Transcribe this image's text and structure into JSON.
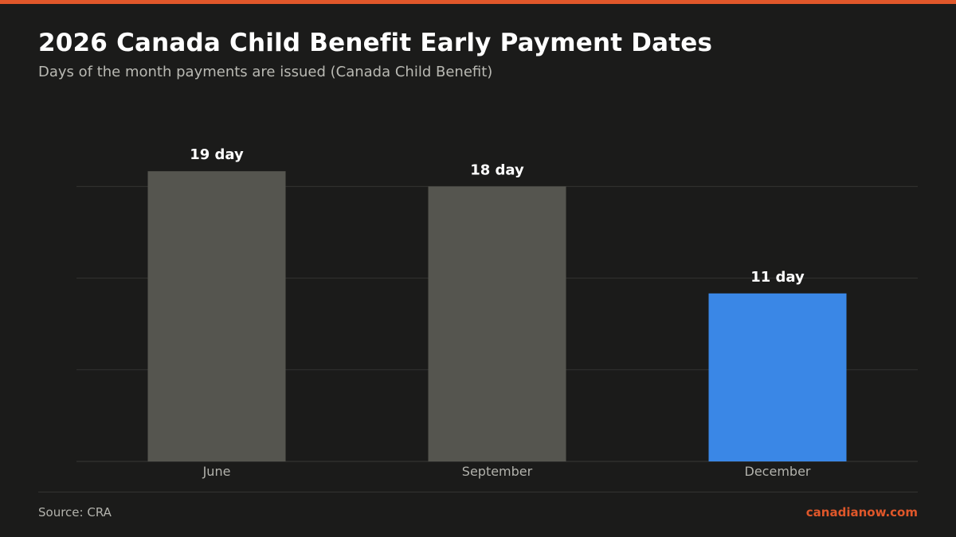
{
  "header": {
    "title": "2026 Canada Child Benefit Early Payment Dates",
    "subtitle": "Days of the month payments are issued (Canada Child Benefit)"
  },
  "footer": {
    "source": "Source: CRA",
    "brand": "canadianow.com"
  },
  "colors": {
    "accent": "#e0572a",
    "bar_default": "#55554f",
    "bar_highlight": "#3a87e6",
    "background": "#1b1b1a"
  },
  "chart_data": {
    "type": "bar",
    "categories": [
      "June",
      "September",
      "December"
    ],
    "values": [
      19,
      18,
      11
    ],
    "data_labels": [
      "19 day",
      "18 day",
      "11 day"
    ],
    "highlight_index": 2,
    "ylim": [
      0,
      18
    ],
    "gridlines": [
      6,
      12,
      18
    ],
    "grid": true,
    "xlabel": "",
    "ylabel": ""
  }
}
